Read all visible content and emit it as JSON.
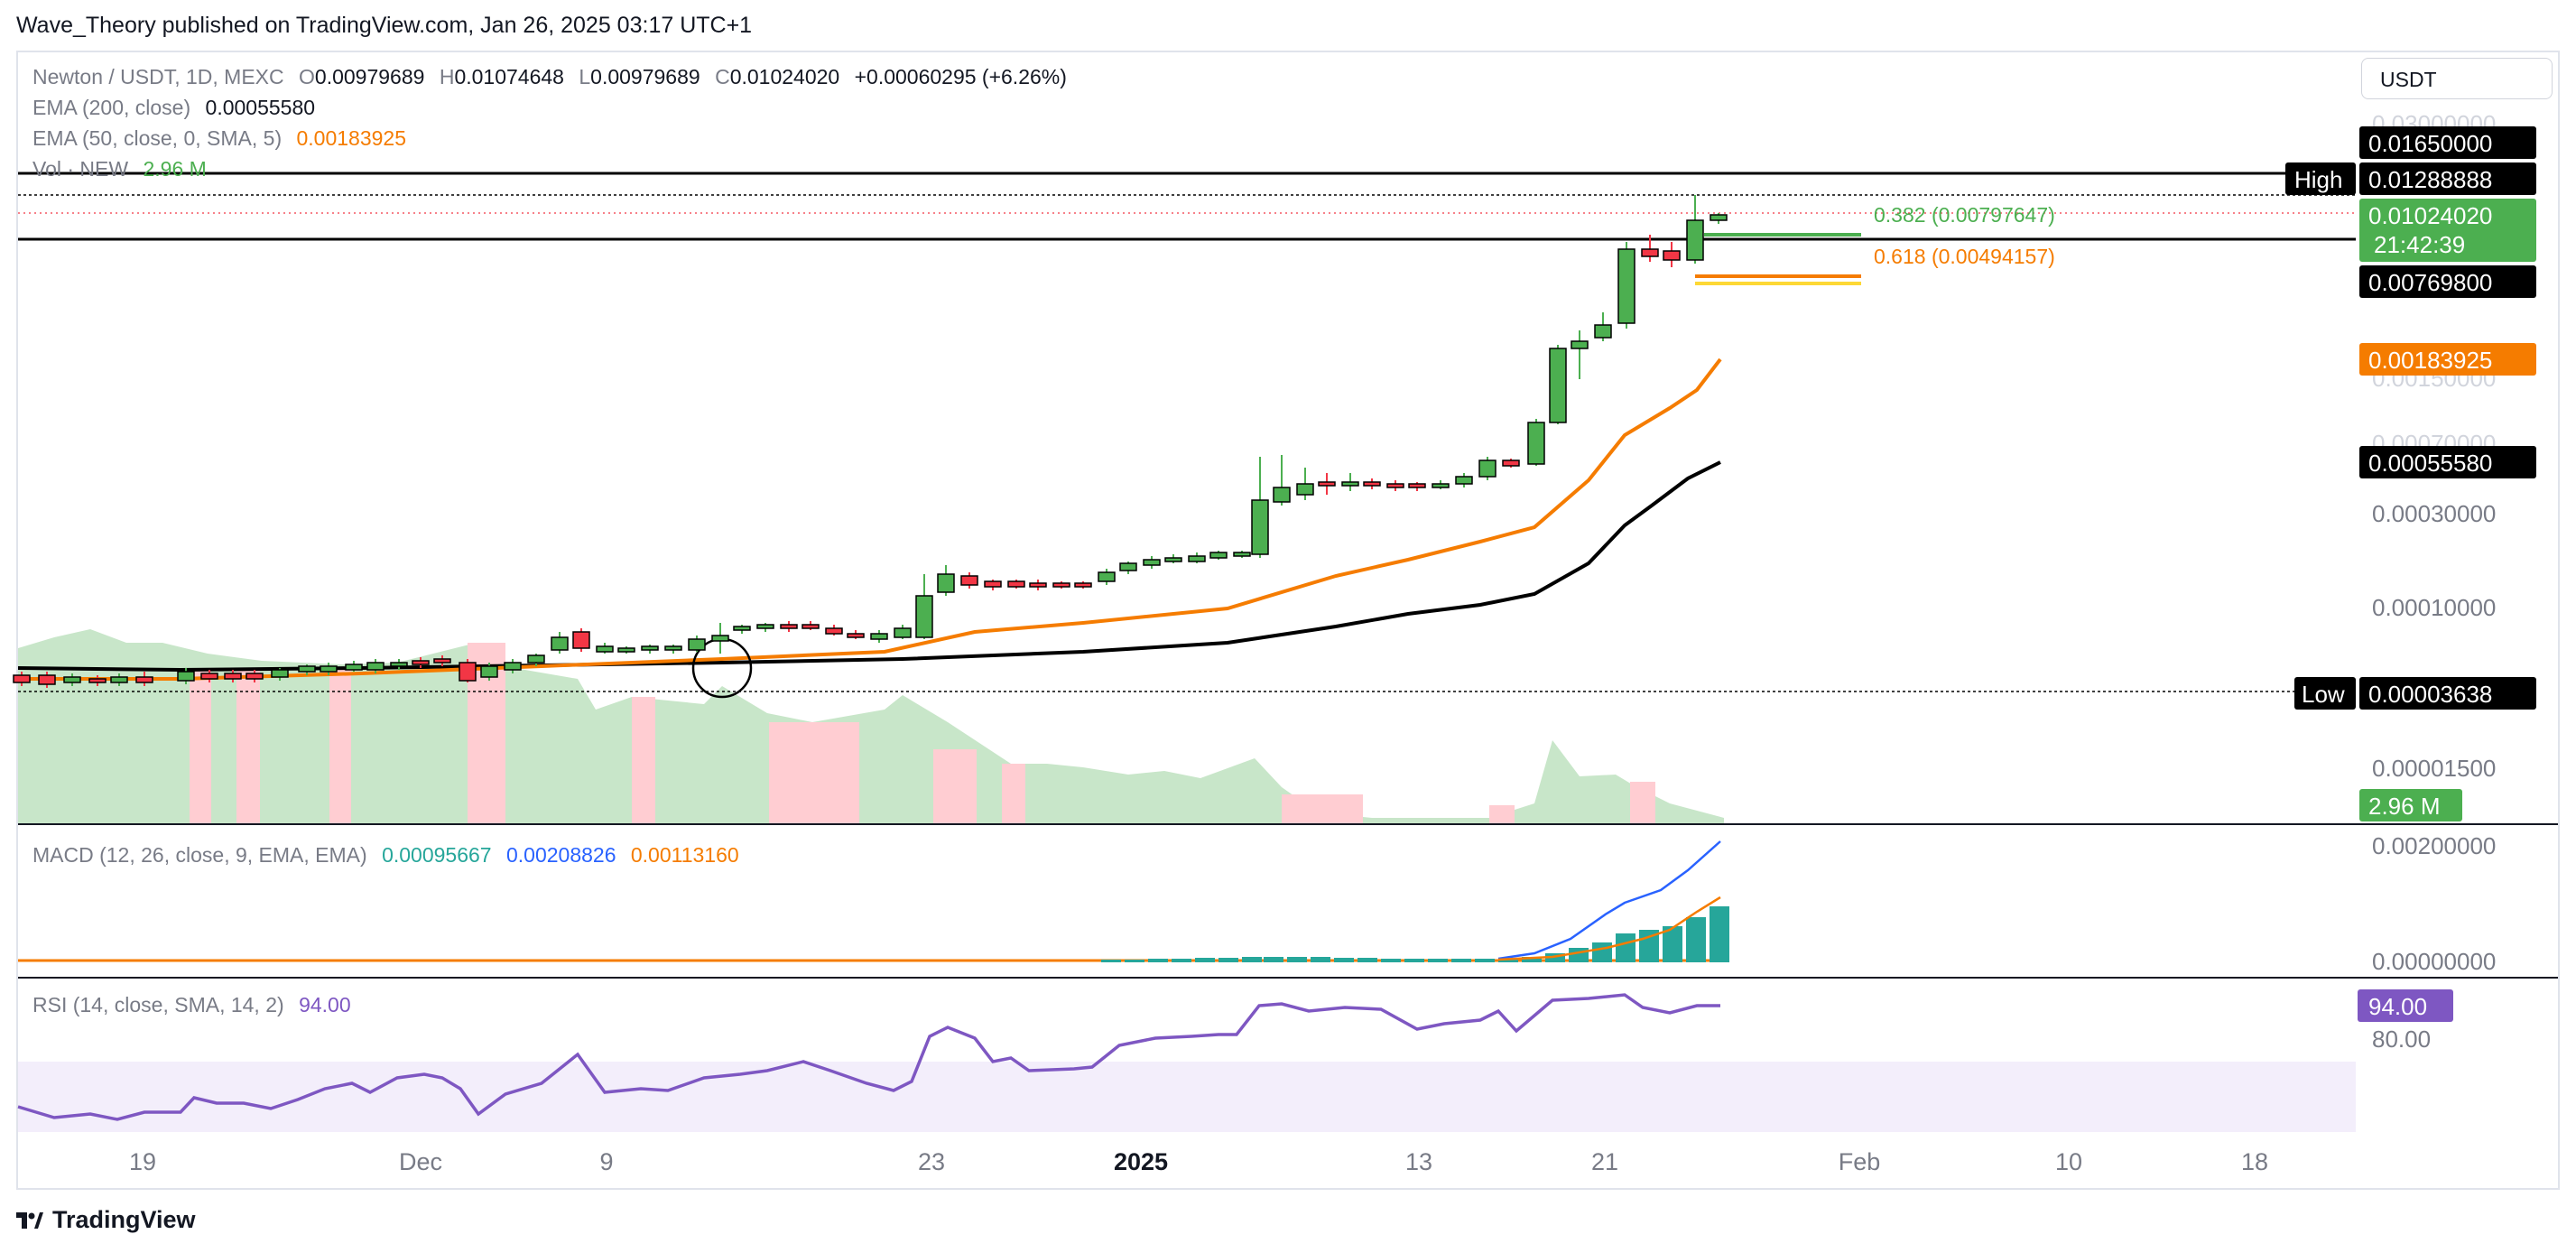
{
  "header": {
    "published": "Wave_Theory published on TradingView.com, Jan 26, 2025 03:17 UTC+1"
  },
  "currency_button": {
    "label": "USDT"
  },
  "legend": {
    "symbol": "Newton / USDT, 1D, MEXC",
    "o_key": "O",
    "o_val": "0.00979689",
    "h_key": "H",
    "h_val": "0.01074648",
    "l_key": "L",
    "l_val": "0.00979689",
    "c_key": "C",
    "c_val": "0.01024020",
    "change": "+0.00060295 (+6.26%)",
    "ema200_label": "EMA (200, close)",
    "ema200_val": "0.00055580",
    "ema50_label": "EMA (50, close, 0, SMA, 5)",
    "ema50_val": "0.00183925",
    "vol_label": "Vol · NEW",
    "vol_val": "2.96 M",
    "macd_label": "MACD (12, 26, close, 9, EMA, EMA)",
    "macd_hist_val": "0.00095667",
    "macd_val": "0.00208826",
    "macd_signal_val": "0.00113160",
    "rsi_label": "RSI (14, close, SMA, 14, 2)",
    "rsi_val": "94.00"
  },
  "price_axis": {
    "ticks": [
      "0.03000000",
      "0.00150000",
      "0.00070000",
      "0.00030000",
      "0.00010000",
      "0.00001500"
    ],
    "labels": [
      {
        "text": "0.01650000",
        "bg": "#000000",
        "fg": "#ffffff"
      },
      {
        "text": "0.01288888",
        "bg": "#000000",
        "fg": "#ffffff"
      },
      {
        "text": "0.01024020",
        "bg": "#4caf50",
        "fg": "#ffffff"
      },
      {
        "text": "21:42:39",
        "bg": "#4caf50",
        "fg": "#ffffff"
      },
      {
        "text": "0.00769800",
        "bg": "#000000",
        "fg": "#ffffff"
      },
      {
        "text": "0.00183925",
        "bg": "#f57c00",
        "fg": "#ffffff"
      },
      {
        "text": "0.00055580",
        "bg": "#000000",
        "fg": "#ffffff"
      },
      {
        "text": "0.00003638",
        "bg": "#000000",
        "fg": "#ffffff"
      },
      {
        "text": "2.96 M",
        "bg": "#4caf50",
        "fg": "#ffffff"
      }
    ],
    "high_tag": "High",
    "low_tag": "Low"
  },
  "fib_labels": {
    "f382": "0.382 (0.00797647)",
    "f618": "0.618 (0.00494157)"
  },
  "macd_axis": {
    "ticks": [
      "0.00200000",
      "0.00000000"
    ]
  },
  "rsi_axis": {
    "value_label": "94.00",
    "tick": "80.00"
  },
  "time_axis": {
    "ticks": [
      "19",
      "Dec",
      "9",
      "23",
      "2025",
      "13",
      "21",
      "Feb",
      "10",
      "18"
    ]
  },
  "footer": {
    "brand": "TradingView"
  },
  "colors": {
    "up": "#4caf50",
    "down": "#f23645",
    "ema50": "#f57c00",
    "ema200": "#000000",
    "macd_line": "#2962ff",
    "macd_signal": "#f57c00",
    "macd_hist": "#26a69a",
    "rsi_line": "#7e57c2",
    "vol_up": "#c8e6c9",
    "vol_down": "#ffcdd2"
  },
  "chart_data": [
    {
      "type": "candlestick",
      "title": "Newton / USDT, 1D, MEXC",
      "scale": "log",
      "last_close": 0.0102402,
      "series": [
        {
          "name": "EMA (200, close)",
          "last": 0.0005558
        },
        {
          "name": "EMA (50, close, 0, SMA, 5)",
          "last": 0.00183925
        }
      ],
      "horizontal_levels": [
        {
          "label": "High",
          "value": 0.01288888
        },
        {
          "label": "",
          "value": 0.0165
        },
        {
          "label": "",
          "value": 0.007698
        },
        {
          "label": "Low",
          "value": 3.638e-05
        }
      ],
      "fib_levels": [
        {
          "ratio": 0.382,
          "value": 0.00797647
        },
        {
          "ratio": 0.618,
          "value": 0.00494157
        }
      ],
      "volume_last": "2.96 M"
    },
    {
      "type": "line",
      "title": "MACD (12, 26, close, 9, EMA, EMA)",
      "series": [
        {
          "name": "histogram",
          "last": 0.00095667
        },
        {
          "name": "MACD",
          "last": 0.00208826
        },
        {
          "name": "signal",
          "last": 0.0011316
        }
      ],
      "yticks": [
        0.002,
        0.0
      ]
    },
    {
      "type": "line",
      "title": "RSI (14, close, SMA, 14, 2)",
      "series": [
        {
          "name": "RSI",
          "last": 94.0
        }
      ],
      "yticks": [
        80.0
      ]
    }
  ]
}
